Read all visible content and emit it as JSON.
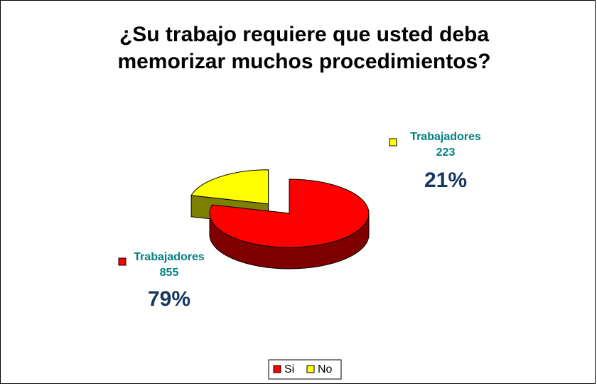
{
  "chart_data": {
    "type": "pie",
    "title": "¿Su trabajo requiere que usted deba memorizar muchos procedimientos?",
    "categories": [
      "Si",
      "No"
    ],
    "values": [
      79,
      21
    ],
    "value_labels": [
      "79%",
      "21%"
    ],
    "counts": [
      855,
      223
    ],
    "point_labels": [
      "Trabajadores",
      "Trabajadores"
    ],
    "colors": [
      "#ff0000",
      "#ffff00"
    ],
    "legend": "bottom"
  }
}
